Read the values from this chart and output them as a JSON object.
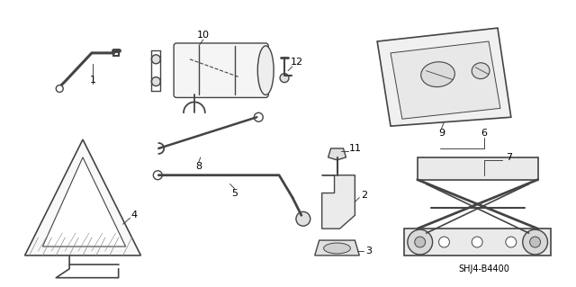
{
  "bg_color": "#ffffff",
  "line_color": "#444444",
  "label_color": "#000000",
  "diagram_code": "SHJ4-B4400",
  "figsize": [
    6.4,
    3.19
  ],
  "dpi": 100
}
